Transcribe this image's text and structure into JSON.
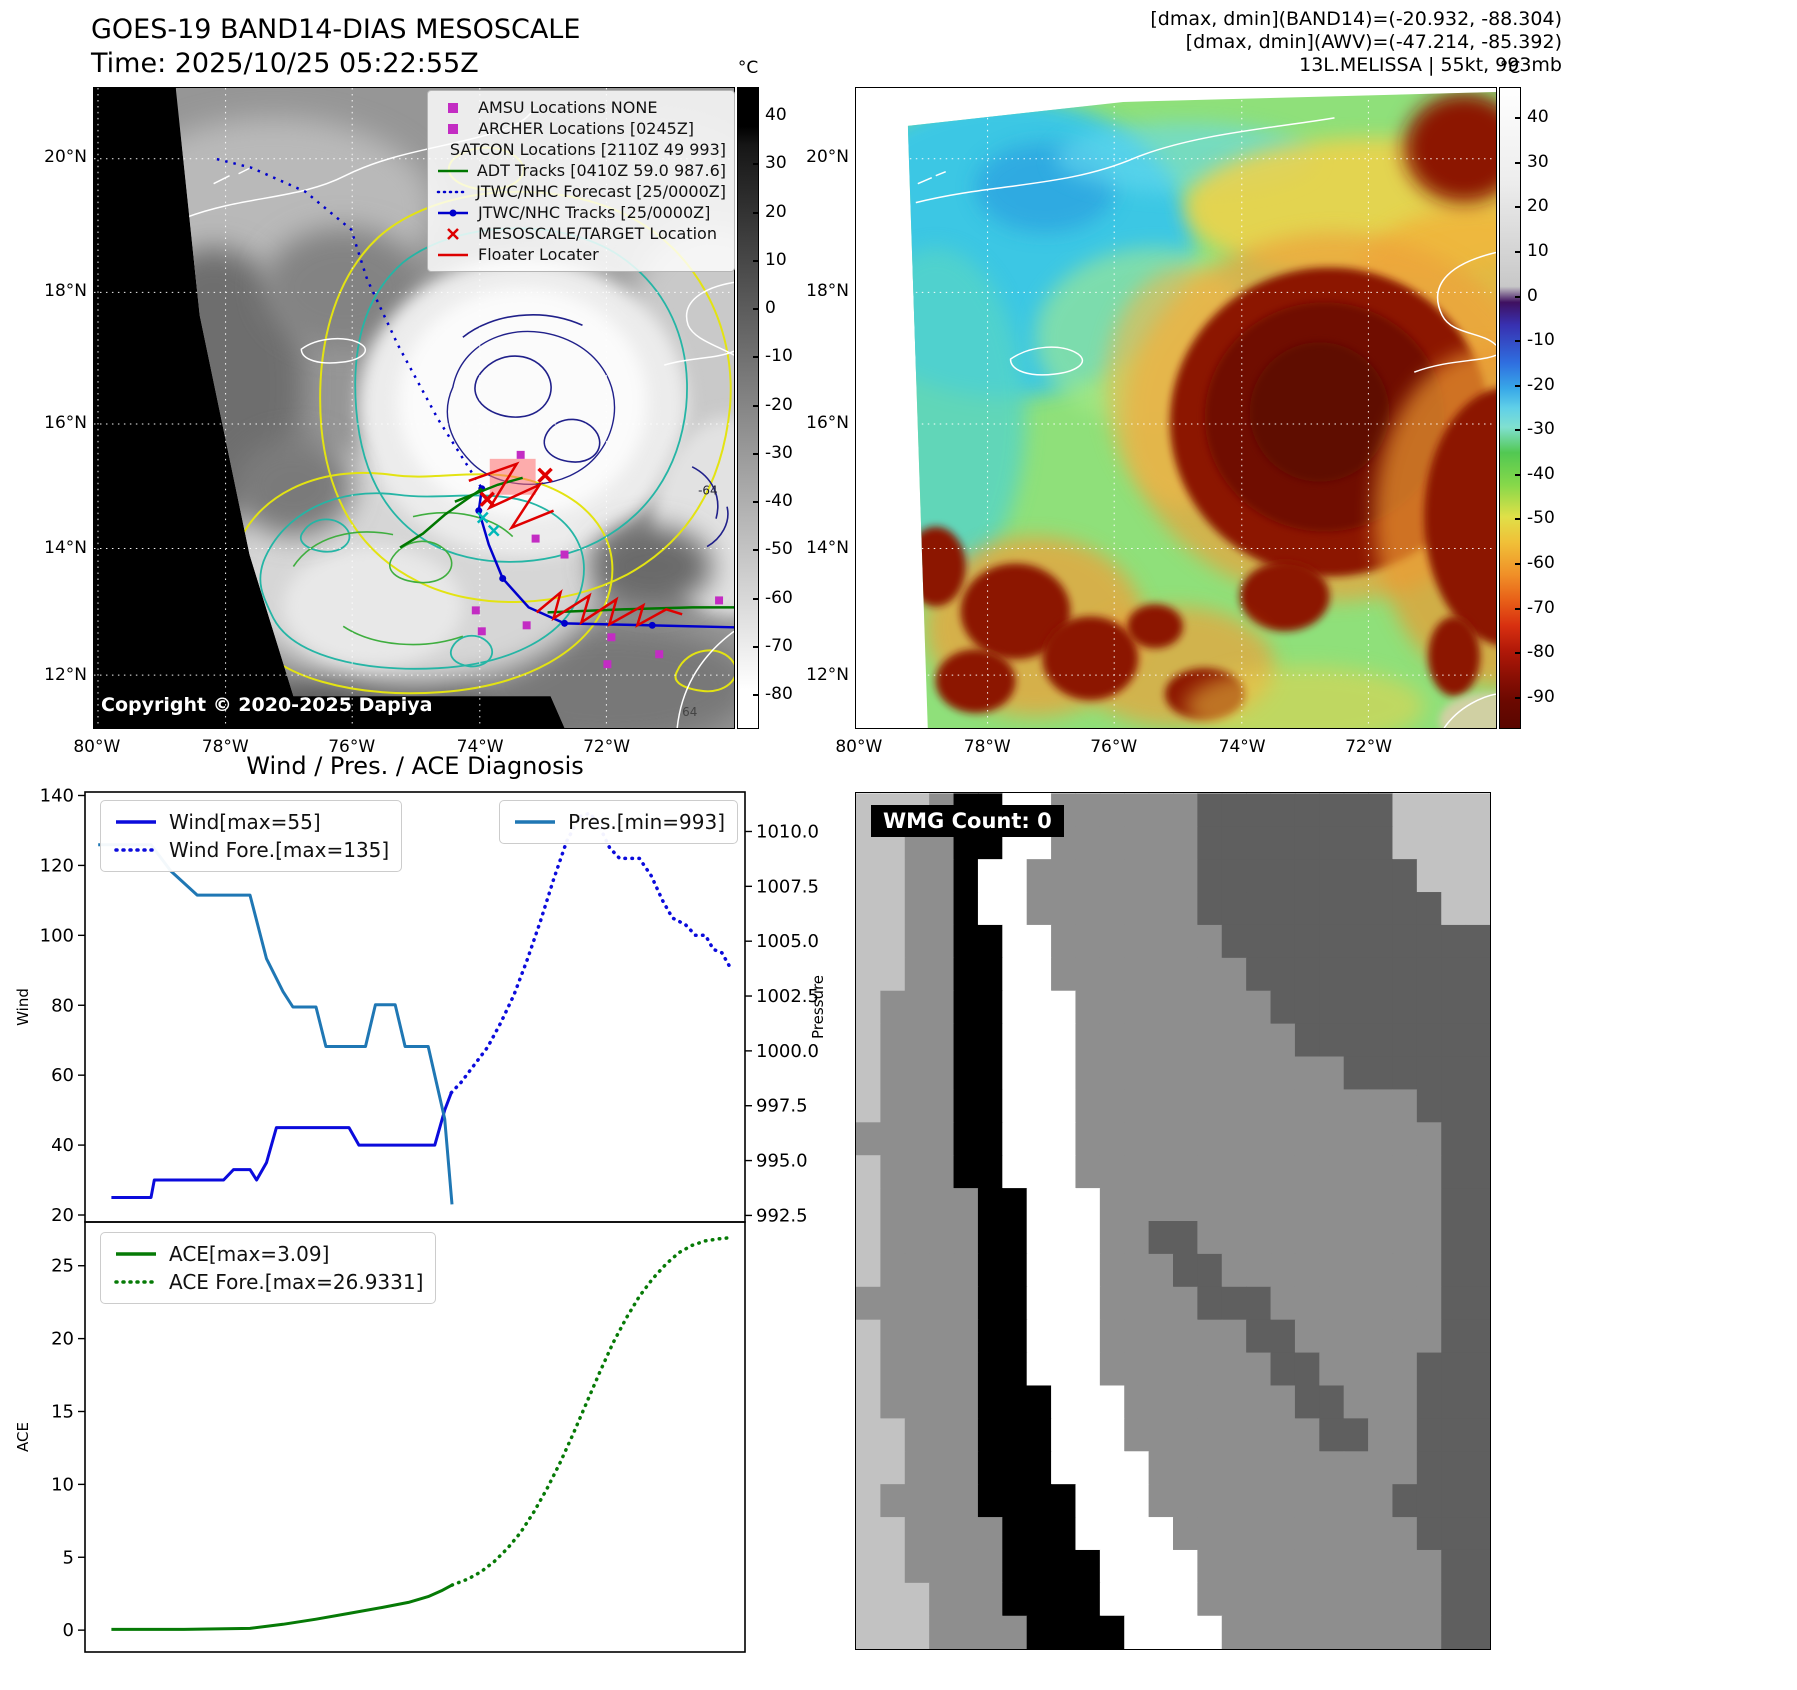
{
  "header": {
    "line1": "[dmax, dmin](BAND14)=(-20.932, -88.304)",
    "line2": "[dmax, dmin](AWV)=(-47.214, -85.392)",
    "line3": "13L.MELISSA | 55kt, 993mb"
  },
  "band14_panel": {
    "title": "GOES-19 BAND14-DIAS MESOSCALE",
    "subtitle": "Time: 2025/10/25 05:22:55Z",
    "copyright": "Copyright © 2020-2025 Dapiya",
    "contour_labels": [
      "64",
      "-64"
    ],
    "legend": [
      {
        "label": "AMSU Locations NONE",
        "marker": "square",
        "color": "#c32cc3"
      },
      {
        "label": "ARCHER Locations [0245Z]",
        "marker": "square",
        "color": "#c32cc3"
      },
      {
        "label": "SATCON Locations [2110Z 49 993]",
        "marker": "x",
        "color": "#00b8b8"
      },
      {
        "label": "ADT Tracks [0410Z 59.0 987.6]",
        "marker": "line",
        "color": "#007700"
      },
      {
        "label": "JTWC/NHC Forecast [25/0000Z]",
        "marker": "dotted",
        "color": "#0000cc"
      },
      {
        "label": "JTWC/NHC Tracks [25/0000Z]",
        "marker": "line-dot",
        "color": "#0000cc"
      },
      {
        "label": "MESOSCALE/TARGET Location",
        "marker": "x",
        "color": "#dd0000"
      },
      {
        "label": "Floater Locater",
        "marker": "line",
        "color": "#dd0000"
      }
    ],
    "lat_ticks": [
      "20°N",
      "18°N",
      "16°N",
      "14°N",
      "12°N"
    ],
    "lon_ticks": [
      "80°W",
      "78°W",
      "76°W",
      "74°W",
      "72°W"
    ],
    "colorbar": {
      "unit": "°C",
      "vmin": -87,
      "vmax": 46,
      "ticks": [
        40,
        30,
        20,
        10,
        0,
        -10,
        -20,
        -30,
        -40,
        -50,
        -60,
        -70,
        -80
      ]
    }
  },
  "awv_panel": {
    "lat_ticks": [
      "20°N",
      "18°N",
      "16°N",
      "14°N",
      "12°N"
    ],
    "lon_ticks": [
      "80°W",
      "78°W",
      "76°W",
      "74°W",
      "72°W"
    ],
    "colorbar": {
      "unit": "°C",
      "vmin": -97,
      "vmax": 47,
      "ticks": [
        40,
        30,
        20,
        10,
        0,
        -10,
        -20,
        -30,
        -40,
        -50,
        -60,
        -70,
        -80,
        -90
      ]
    }
  },
  "wmg_panel": {
    "label": "WMG Count: 0",
    "palette": {
      "0": "#ffffff",
      "1": "#c2c2c2",
      "2": "#8e8e8e",
      "3": "#5f5f5f",
      "4": "#000000"
    },
    "grid": [
      "11124400222222333333331111",
      "11224400222222333333331111",
      "11224002222222333333333111",
      "11224002222222333333333311",
      "11224400222222233333333333",
      "11224400222222223333333333",
      "12224400022222222333333333",
      "12224400022222222233333333",
      "12224400022222222222333333",
      "12224400022222222222222333",
      "22224400022222222222222233",
      "12224400022222222222222233",
      "12222440002222222222222233",
      "12222440002233222222222233",
      "12222440002223322222222233",
      "22222440002222333222222233",
      "12222440002222223322222233",
      "12222440002222222332222333",
      "12222444000222222233222333",
      "11222444000222222223322333",
      "11222444000022222222222333",
      "12222444400022222222223333",
      "11222244400002222222222333",
      "11222244440000222222222233",
      "11122244440000222222222233",
      "11122224444000022222222233"
    ]
  },
  "chart_data": [
    {
      "type": "line",
      "title": "Wind / Pres. / ACE Diagnosis",
      "ylabel": "Wind",
      "y2label": "Pressure",
      "xlim": [
        0,
        1
      ],
      "ylim": [
        18,
        141
      ],
      "y2lim": [
        992.2,
        1011.8
      ],
      "yticks": [
        20,
        40,
        60,
        80,
        100,
        120,
        140
      ],
      "y2ticks": [
        992.5,
        995.0,
        997.5,
        1000.0,
        1002.5,
        1005.0,
        1007.5,
        1010.0
      ],
      "series": [
        {
          "name": "Wind[max=55]",
          "axis": "left",
          "style": "solid",
          "color": "#0b0bdc",
          "points": [
            [
              0.04,
              25
            ],
            [
              0.1,
              25
            ],
            [
              0.105,
              30
            ],
            [
              0.21,
              30
            ],
            [
              0.225,
              33
            ],
            [
              0.25,
              33
            ],
            [
              0.26,
              30
            ],
            [
              0.275,
              35
            ],
            [
              0.29,
              45
            ],
            [
              0.4,
              45
            ],
            [
              0.415,
              40
            ],
            [
              0.53,
              40
            ],
            [
              0.545,
              50
            ],
            [
              0.555,
              55
            ]
          ]
        },
        {
          "name": "Wind Fore.[max=135]",
          "axis": "left",
          "style": "dotted",
          "color": "#0b0bdc",
          "points": [
            [
              0.555,
              55
            ],
            [
              0.57,
              58
            ],
            [
              0.59,
              63
            ],
            [
              0.61,
              68
            ],
            [
              0.63,
              75
            ],
            [
              0.65,
              83
            ],
            [
              0.67,
              93
            ],
            [
              0.69,
              104
            ],
            [
              0.71,
              116
            ],
            [
              0.73,
              127
            ],
            [
              0.75,
              134
            ],
            [
              0.765,
              135
            ],
            [
              0.78,
              131
            ],
            [
              0.795,
              125
            ],
            [
              0.81,
              122
            ],
            [
              0.84,
              122
            ],
            [
              0.858,
              117
            ],
            [
              0.875,
              110
            ],
            [
              0.89,
              105
            ],
            [
              0.91,
              103
            ],
            [
              0.925,
              100
            ],
            [
              0.94,
              100
            ],
            [
              0.952,
              96
            ],
            [
              0.965,
              95
            ],
            [
              0.98,
              90
            ]
          ]
        },
        {
          "name": "Pres.[min=993]",
          "axis": "right",
          "style": "solid",
          "color": "#1f77b4",
          "points": [
            [
              0.02,
              1009.4
            ],
            [
              0.1,
              1009.4
            ],
            [
              0.13,
              1008.2
            ],
            [
              0.17,
              1007.1
            ],
            [
              0.25,
              1007.1
            ],
            [
              0.275,
              1004.2
            ],
            [
              0.3,
              1002.7
            ],
            [
              0.315,
              1002.0
            ],
            [
              0.35,
              1002.0
            ],
            [
              0.365,
              1000.2
            ],
            [
              0.425,
              1000.2
            ],
            [
              0.44,
              1002.1
            ],
            [
              0.47,
              1002.1
            ],
            [
              0.485,
              1000.2
            ],
            [
              0.52,
              1000.2
            ],
            [
              0.545,
              996.9
            ],
            [
              0.556,
              993.0
            ]
          ]
        }
      ]
    },
    {
      "type": "line",
      "ylabel": "ACE",
      "xlim": [
        0,
        1
      ],
      "ylim": [
        -1.5,
        28
      ],
      "yticks": [
        0,
        5,
        10,
        15,
        20,
        25
      ],
      "series": [
        {
          "name": "ACE[max=3.09]",
          "axis": "left",
          "style": "solid",
          "color": "#067a06",
          "points": [
            [
              0.04,
              0.05
            ],
            [
              0.15,
              0.05
            ],
            [
              0.25,
              0.12
            ],
            [
              0.3,
              0.4
            ],
            [
              0.35,
              0.75
            ],
            [
              0.4,
              1.15
            ],
            [
              0.45,
              1.55
            ],
            [
              0.49,
              1.9
            ],
            [
              0.52,
              2.3
            ],
            [
              0.54,
              2.7
            ],
            [
              0.556,
              3.09
            ]
          ]
        },
        {
          "name": "ACE Fore.[max=26.9331]",
          "axis": "left",
          "style": "dotted",
          "color": "#067a06",
          "points": [
            [
              0.556,
              3.09
            ],
            [
              0.58,
              3.5
            ],
            [
              0.6,
              4.0
            ],
            [
              0.62,
              4.7
            ],
            [
              0.64,
              5.6
            ],
            [
              0.66,
              6.7
            ],
            [
              0.68,
              8.1
            ],
            [
              0.7,
              9.7
            ],
            [
              0.72,
              11.5
            ],
            [
              0.74,
              13.5
            ],
            [
              0.76,
              15.6
            ],
            [
              0.78,
              17.7
            ],
            [
              0.8,
              19.7
            ],
            [
              0.82,
              21.4
            ],
            [
              0.84,
              22.9
            ],
            [
              0.86,
              24.1
            ],
            [
              0.88,
              25.1
            ],
            [
              0.9,
              25.9
            ],
            [
              0.92,
              26.4
            ],
            [
              0.94,
              26.7
            ],
            [
              0.96,
              26.85
            ],
            [
              0.98,
              26.93
            ]
          ]
        }
      ]
    }
  ]
}
